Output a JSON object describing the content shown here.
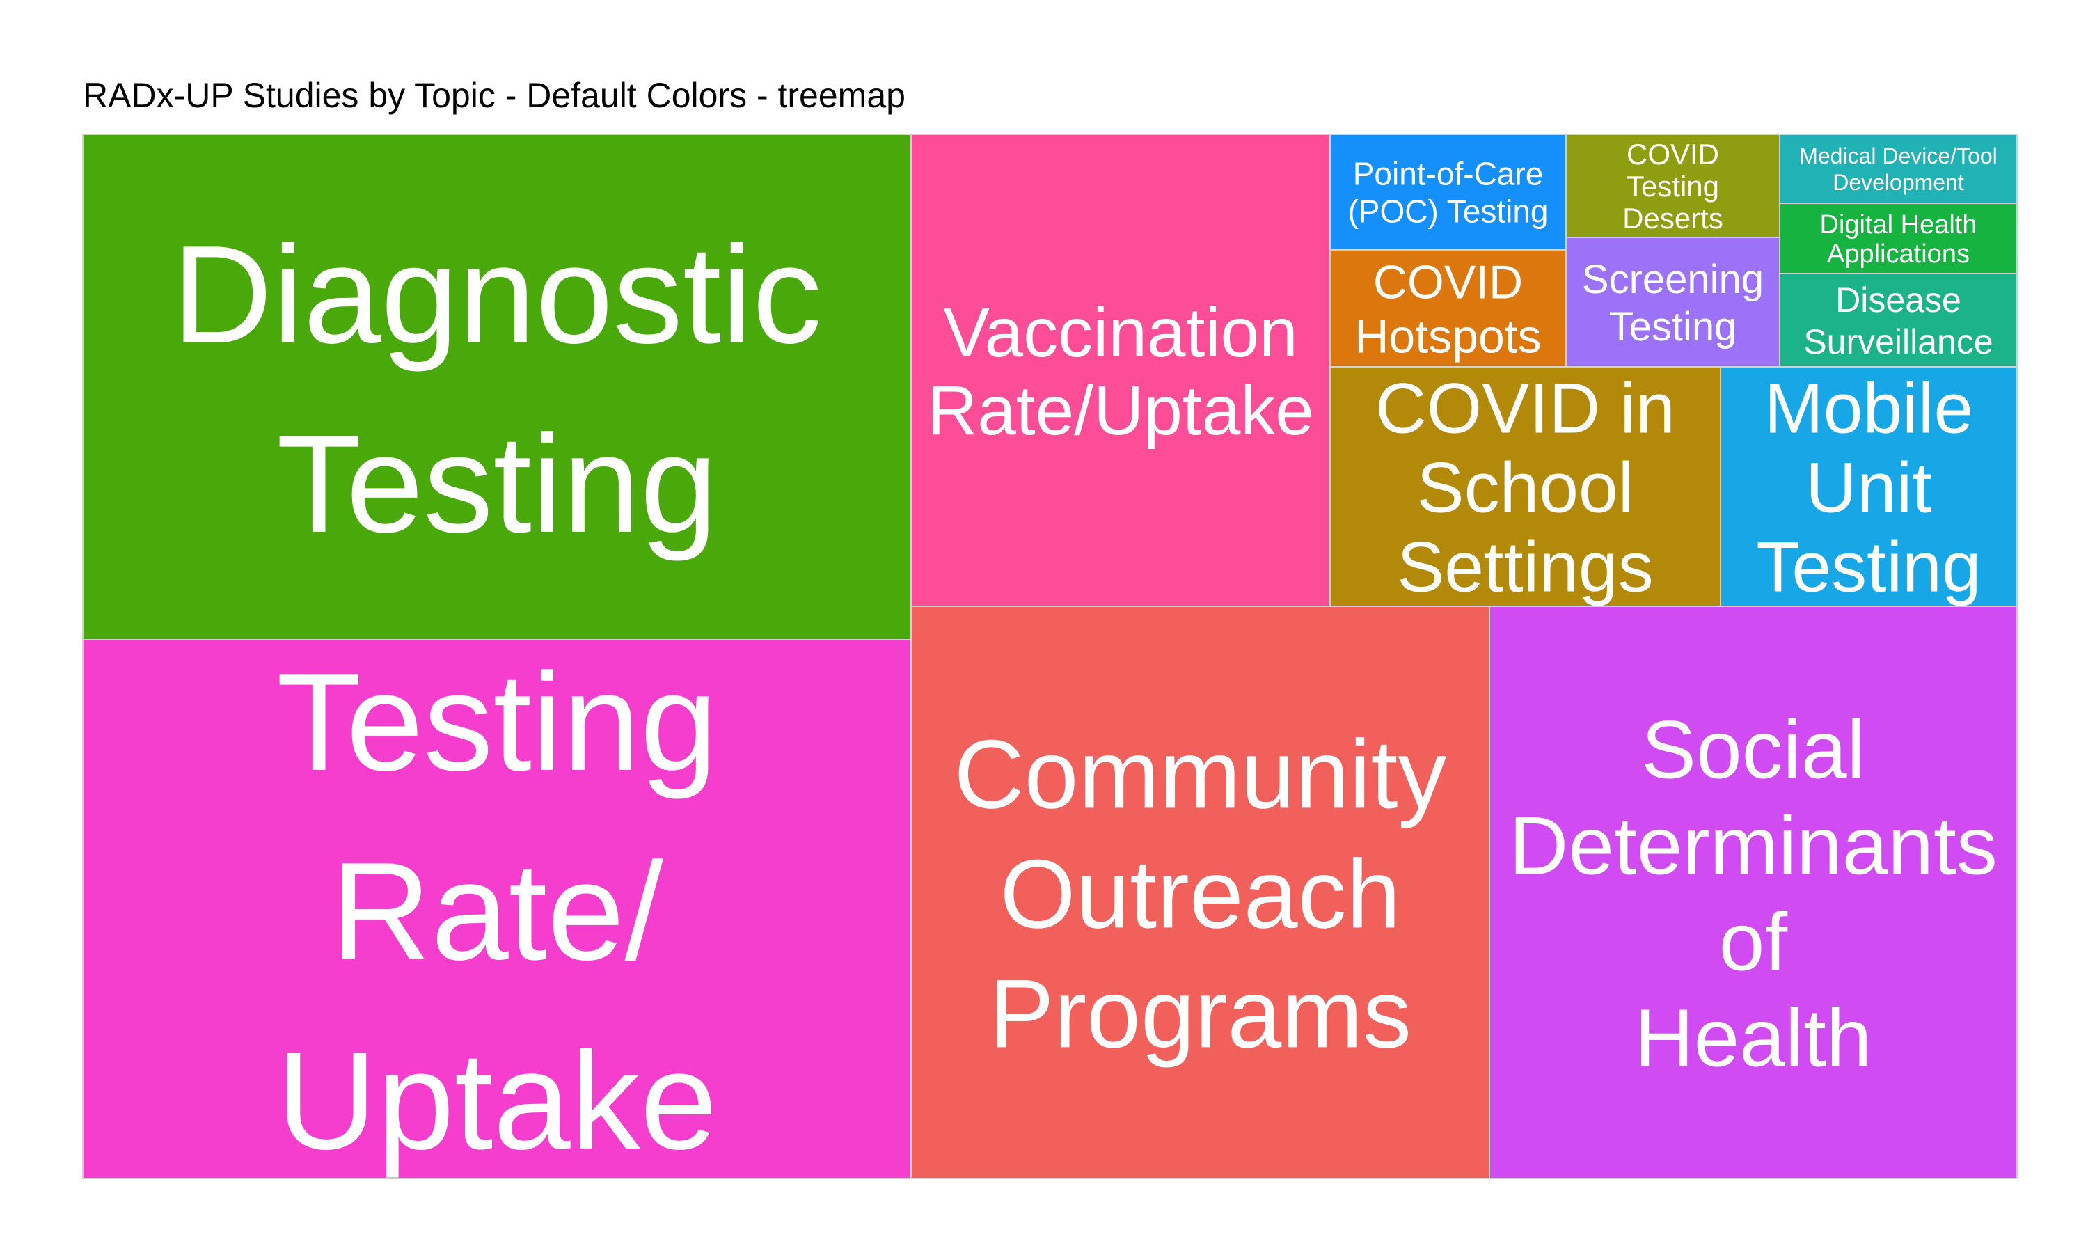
{
  "chart_data": {
    "type": "treemap",
    "title": "RADx-UP Studies by Topic - Default Colors - treemap",
    "tiles": [
      {
        "label": "Diagnostic Testing",
        "lines": [
          "Diagnostic",
          "Testing"
        ],
        "color": "#49A80A"
      },
      {
        "label": "Testing Rate/ Uptake",
        "lines": [
          "Testing",
          "Rate/",
          "Uptake"
        ],
        "color": "#F53ECD"
      },
      {
        "label": "Vaccination Rate/Uptake",
        "lines": [
          "Vaccination",
          "Rate/Uptake"
        ],
        "color": "#FD4D97"
      },
      {
        "label": "Community Outreach Programs",
        "lines": [
          "Community",
          "Outreach",
          "Programs"
        ],
        "color": "#F2605C"
      },
      {
        "label": "Social Determinants of Health",
        "lines": [
          "Social",
          "Determinants",
          "of",
          "Health"
        ],
        "color": "#D14BF2"
      },
      {
        "label": "COVID in School Settings",
        "lines": [
          "COVID in",
          "School",
          "Settings"
        ],
        "color": "#B3890A"
      },
      {
        "label": "Mobile Unit Testing",
        "lines": [
          "Mobile",
          "Unit",
          "Testing"
        ],
        "color": "#18A7E6"
      },
      {
        "label": "Point-of-Care (POC) Testing",
        "lines": [
          "Point-of-Care",
          "(POC) Testing"
        ],
        "color": "#1590FA"
      },
      {
        "label": "COVID Hotspots",
        "lines": [
          "COVID",
          "Hotspots"
        ],
        "color": "#DB770D"
      },
      {
        "label": "COVID Testing Deserts",
        "lines": [
          "COVID",
          "Testing",
          "Deserts"
        ],
        "color": "#8F9E10"
      },
      {
        "label": "Screening Testing",
        "lines": [
          "Screening",
          "Testing"
        ],
        "color": "#9B72F8"
      },
      {
        "label": "Medical Device/Tool Development",
        "lines": [
          "Medical Device/Tool",
          "Development"
        ],
        "color": "#21B2B5"
      },
      {
        "label": "Digital Health Applications",
        "lines": [
          "Digital Health",
          "Applications"
        ],
        "color": "#17B341"
      },
      {
        "label": "Disease Surveillance",
        "lines": [
          "Disease",
          "Surveillance"
        ],
        "color": "#1DB389"
      }
    ]
  }
}
